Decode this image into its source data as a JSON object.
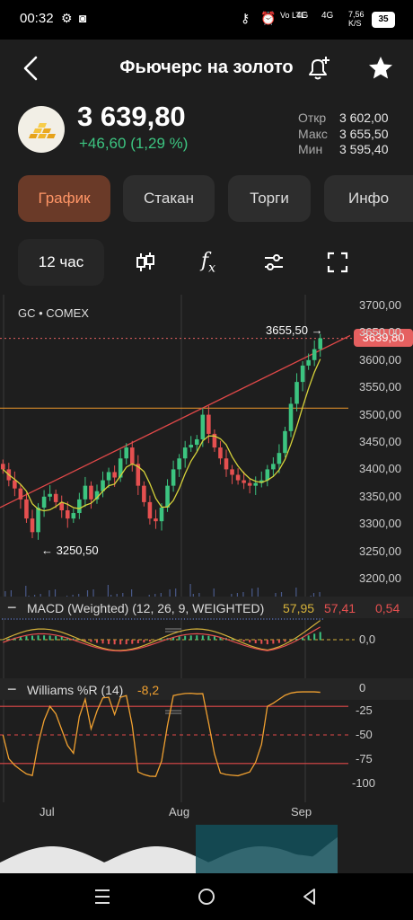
{
  "status_bar": {
    "time": "00:32",
    "network": "Vo LTE",
    "signal1": "4G",
    "signal2": "4G",
    "speed": "7,56 K/S",
    "battery": "35"
  },
  "header": {
    "title": "Фьючерс на золото"
  },
  "quote": {
    "price": "3 639,80",
    "change": "+46,60 (1,29 %)",
    "stats": [
      {
        "label": "Откр",
        "value": "3 602,00"
      },
      {
        "label": "Макс",
        "value": "3 655,50"
      },
      {
        "label": "Мин",
        "value": "3 595,40"
      }
    ]
  },
  "tabs": [
    {
      "label": "График",
      "active": true
    },
    {
      "label": "Стакан",
      "active": false
    },
    {
      "label": "Торги",
      "active": false
    },
    {
      "label": "Инфо",
      "active": false
    }
  ],
  "toolbar": {
    "period": "12 час"
  },
  "chart": {
    "symbol": "GC • COMEX",
    "current_price_tag": "3639,80",
    "high_label": "3655,50 →",
    "low_label": "← 3250,50",
    "macd_label": "MACD (Weighted) (12, 26, 9, WEIGHTED)",
    "macd_values": [
      "57,95",
      "57,41",
      "0,54"
    ],
    "macd_axis": "0,0",
    "williams_label": "Williams %R (14)",
    "williams_value": "-8,2",
    "williams_axis": [
      "0",
      "-25",
      "-50",
      "-75",
      "-100"
    ],
    "x_labels": [
      "Jul",
      "Aug",
      "Sep"
    ],
    "colors": {
      "up": "#3cc480",
      "down": "#e55050",
      "ma": "#d6d23a",
      "williams": "#f0a030",
      "trend": "#e04848",
      "support": "#d48a2a"
    }
  },
  "chart_data": {
    "type": "candlestick",
    "symbol": "GC",
    "exchange": "COMEX",
    "interval": "12 час",
    "y_ticks": [
      3200,
      3250,
      3300,
      3350,
      3400,
      3450,
      3500,
      3550,
      3600,
      3650,
      3700
    ],
    "y_tick_labels": [
      "3200,00",
      "3250,00",
      "3300,00",
      "3350,00",
      "3400,00",
      "3450,00",
      "3500,00",
      "3550,00",
      "3600,00",
      "3650,00",
      "3700,00"
    ],
    "ylim": [
      3190,
      3710
    ],
    "x_labels": [
      "Jul",
      "Aug",
      "Sep"
    ],
    "last_price": 3639.8,
    "high_marker": 3655.5,
    "low_marker": 3250.5,
    "support_level": 3512,
    "close_series": [
      3400,
      3380,
      3365,
      3345,
      3310,
      3285,
      3330,
      3350,
      3355,
      3340,
      3325,
      3310,
      3320,
      3345,
      3370,
      3345,
      3360,
      3380,
      3395,
      3385,
      3420,
      3440,
      3410,
      3370,
      3340,
      3310,
      3305,
      3330,
      3370,
      3400,
      3420,
      3440,
      3445,
      3455,
      3500,
      3465,
      3440,
      3420,
      3400,
      3390,
      3380,
      3375,
      3370,
      3375,
      3380,
      3400,
      3410,
      3430,
      3470,
      3520,
      3560,
      3590,
      3600,
      3620,
      3640
    ]
  }
}
